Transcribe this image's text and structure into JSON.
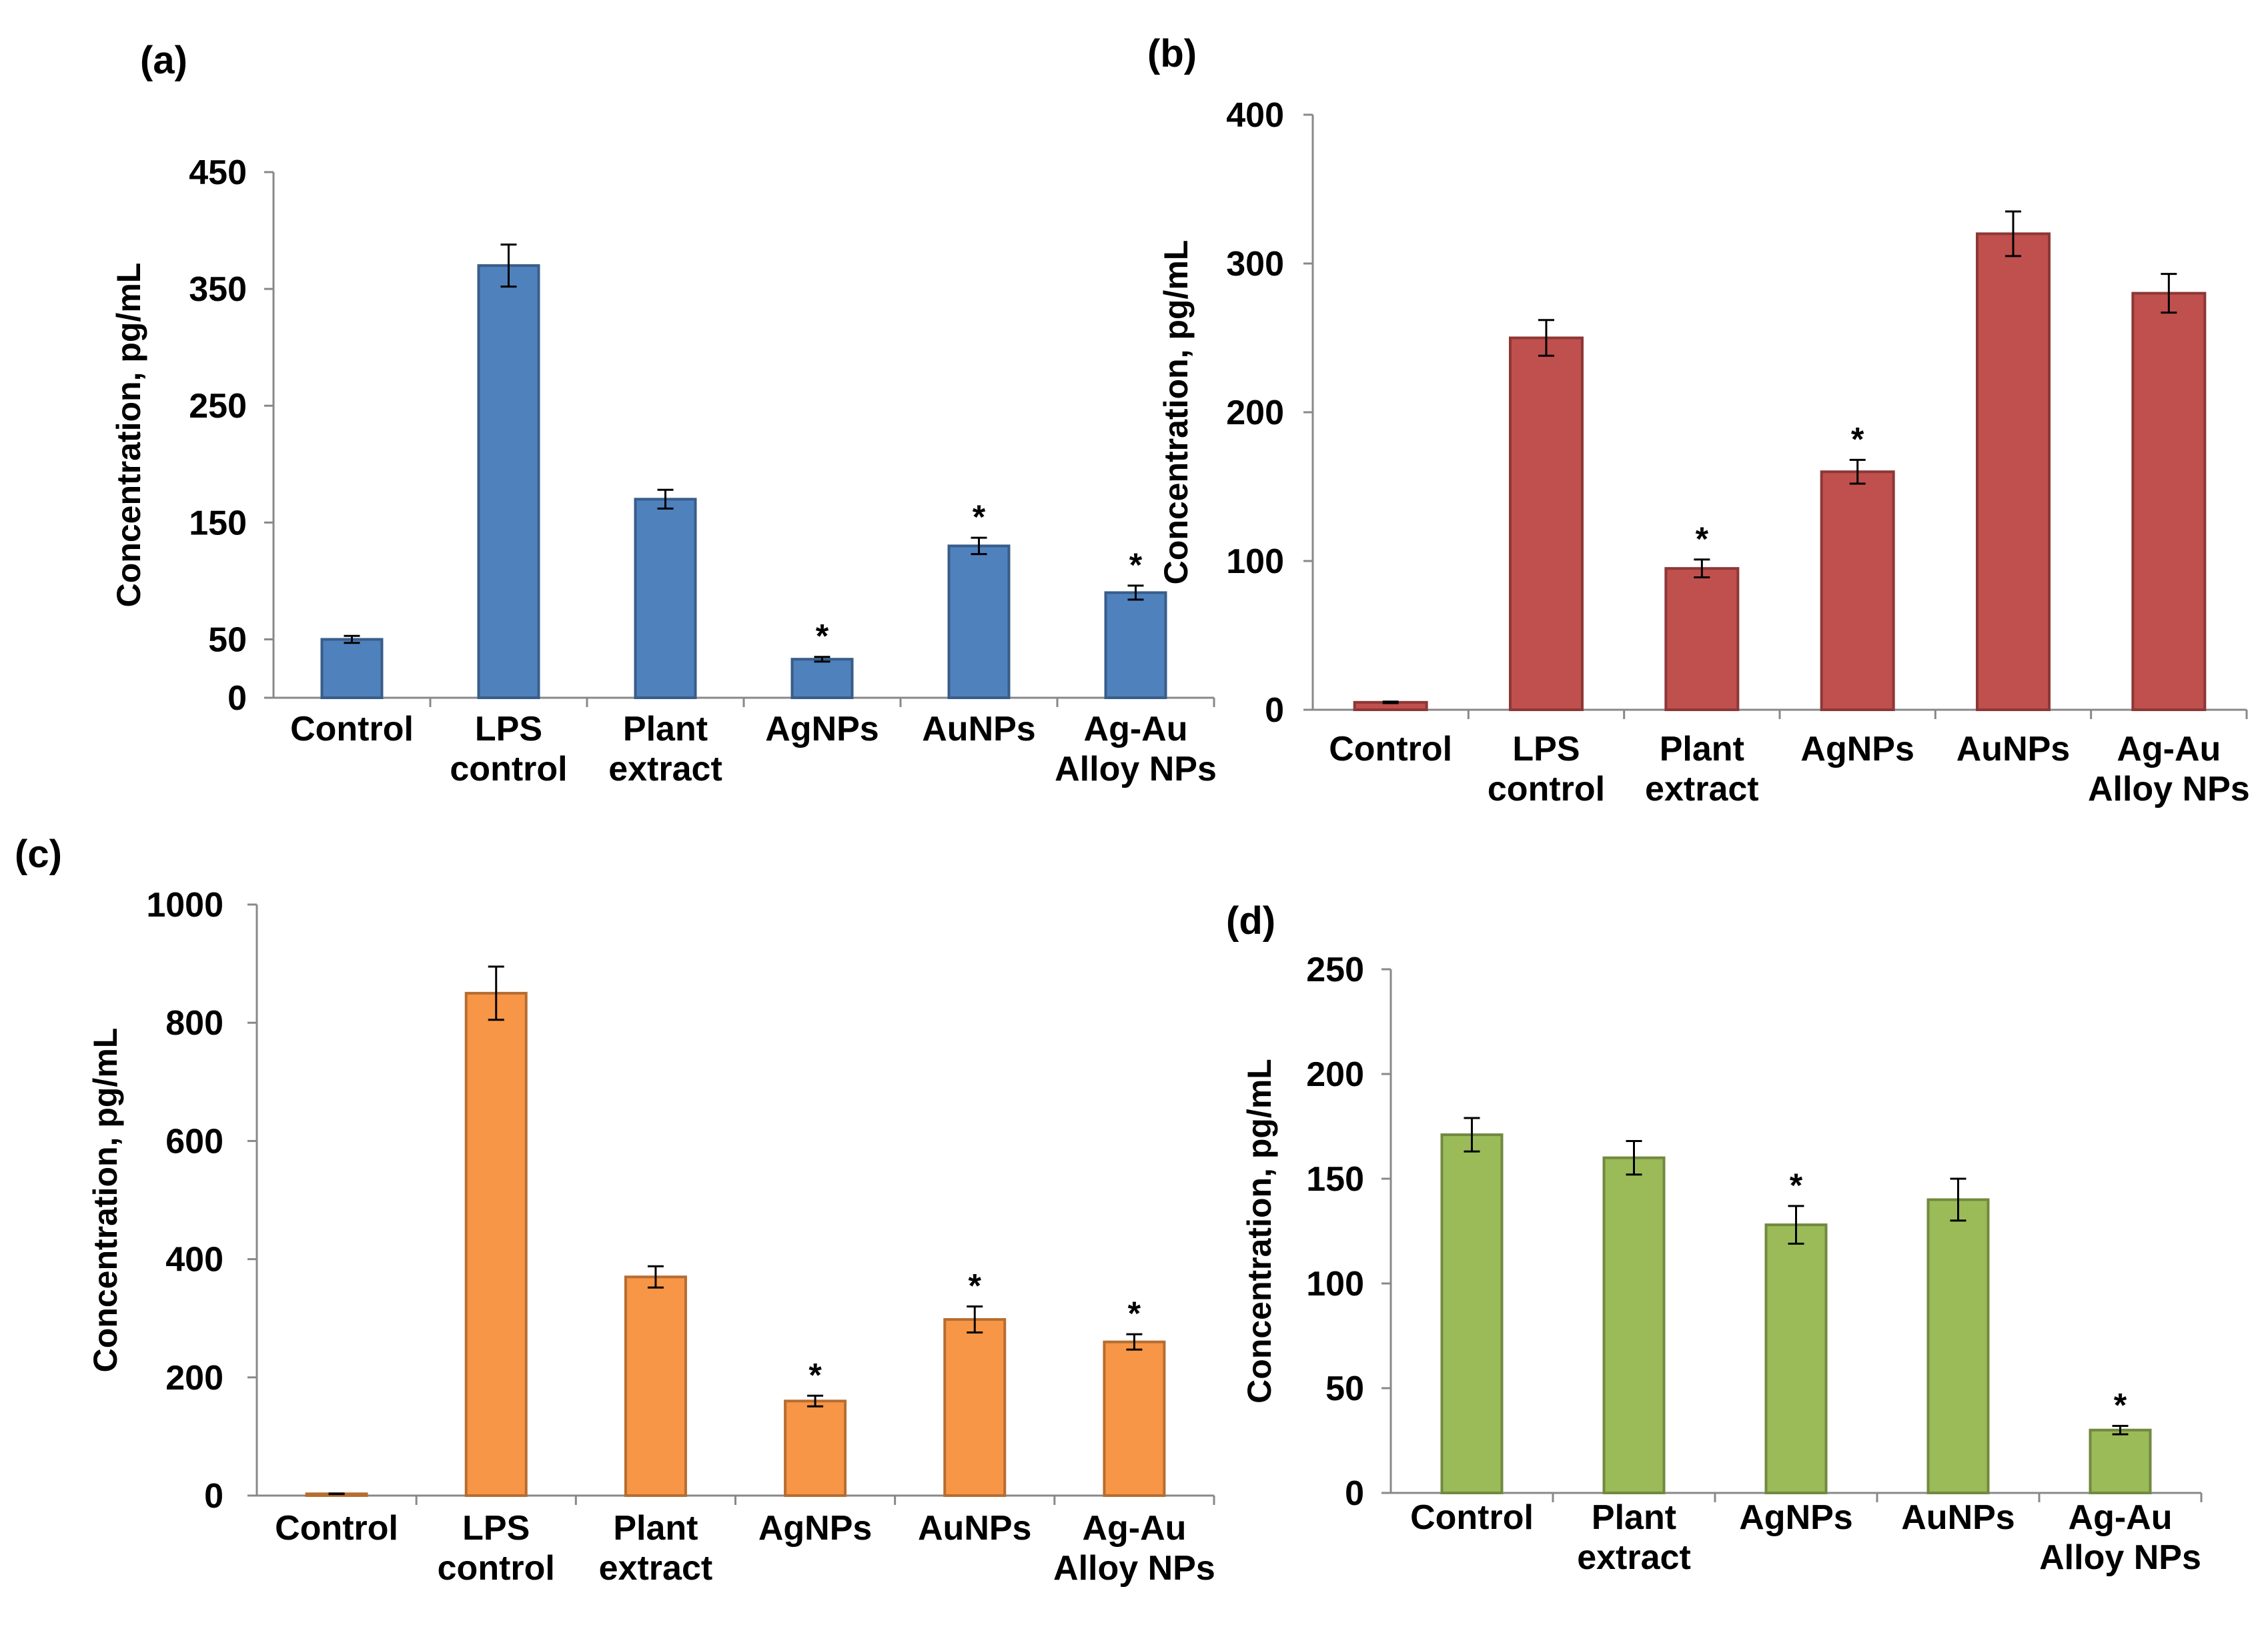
{
  "chart_data": [
    {
      "panel": "(a)",
      "type": "bar",
      "ylabel": "Concentration, pg/mL",
      "ylim": [
        0,
        450
      ],
      "yticks": [
        0,
        50,
        150,
        250,
        350,
        450
      ],
      "categories": [
        [
          "Control"
        ],
        [
          "LPS",
          "control"
        ],
        [
          "Plant",
          "extract"
        ],
        [
          "AgNPs"
        ],
        [
          "AuNPs"
        ],
        [
          "Ag-Au",
          "Alloy NPs"
        ]
      ],
      "values": [
        50,
        370,
        170,
        33,
        130,
        90
      ],
      "errors": [
        3,
        18,
        8,
        2,
        7,
        6
      ],
      "significant": [
        false,
        false,
        false,
        true,
        true,
        true
      ],
      "color": "#4F81BD",
      "edge": "#385D8A"
    },
    {
      "panel": "(b)",
      "type": "bar",
      "ylabel": "Concentration, pg/mL",
      "ylim": [
        0,
        400
      ],
      "yticks": [
        0,
        100,
        200,
        300,
        400
      ],
      "categories": [
        [
          "Control"
        ],
        [
          "LPS",
          "control"
        ],
        [
          "Plant",
          "extract"
        ],
        [
          "AgNPs"
        ],
        [
          "AuNPs"
        ],
        [
          "Ag-Au",
          "Alloy NPs"
        ]
      ],
      "values": [
        5,
        250,
        95,
        160,
        320,
        280
      ],
      "errors": [
        0.5,
        12,
        6,
        8,
        15,
        13
      ],
      "significant": [
        false,
        false,
        true,
        true,
        false,
        false
      ],
      "color": "#C0504D",
      "edge": "#8C3836"
    },
    {
      "panel": "(c)",
      "type": "bar",
      "ylabel": "Concentration, pg/mL",
      "ylim": [
        0,
        1000
      ],
      "yticks": [
        0,
        200,
        400,
        600,
        800,
        1000
      ],
      "categories": [
        [
          "Control"
        ],
        [
          "LPS",
          "control"
        ],
        [
          "Plant",
          "extract"
        ],
        [
          "AgNPs"
        ],
        [
          "AuNPs"
        ],
        [
          "Ag-Au",
          "Alloy NPs"
        ]
      ],
      "values": [
        3,
        850,
        370,
        160,
        298,
        260
      ],
      "errors": [
        0.5,
        45,
        18,
        9,
        22,
        13
      ],
      "significant": [
        false,
        false,
        false,
        true,
        true,
        true
      ],
      "color": "#F79646",
      "edge": "#B66D31"
    },
    {
      "panel": "(d)",
      "type": "bar",
      "ylabel": "Concentration, pg/mL",
      "ylim": [
        0,
        250
      ],
      "yticks": [
        0,
        50,
        100,
        150,
        200,
        250
      ],
      "categories": [
        [
          "Control"
        ],
        [
          "Plant",
          "extract"
        ],
        [
          "AgNPs"
        ],
        [
          "AuNPs"
        ],
        [
          "Ag-Au",
          "Alloy NPs"
        ]
      ],
      "values": [
        171,
        160,
        128,
        140,
        30
      ],
      "errors": [
        8,
        8,
        9,
        10,
        2
      ],
      "significant": [
        false,
        false,
        true,
        false,
        true
      ],
      "color": "#9BBB59",
      "edge": "#71893F"
    }
  ]
}
